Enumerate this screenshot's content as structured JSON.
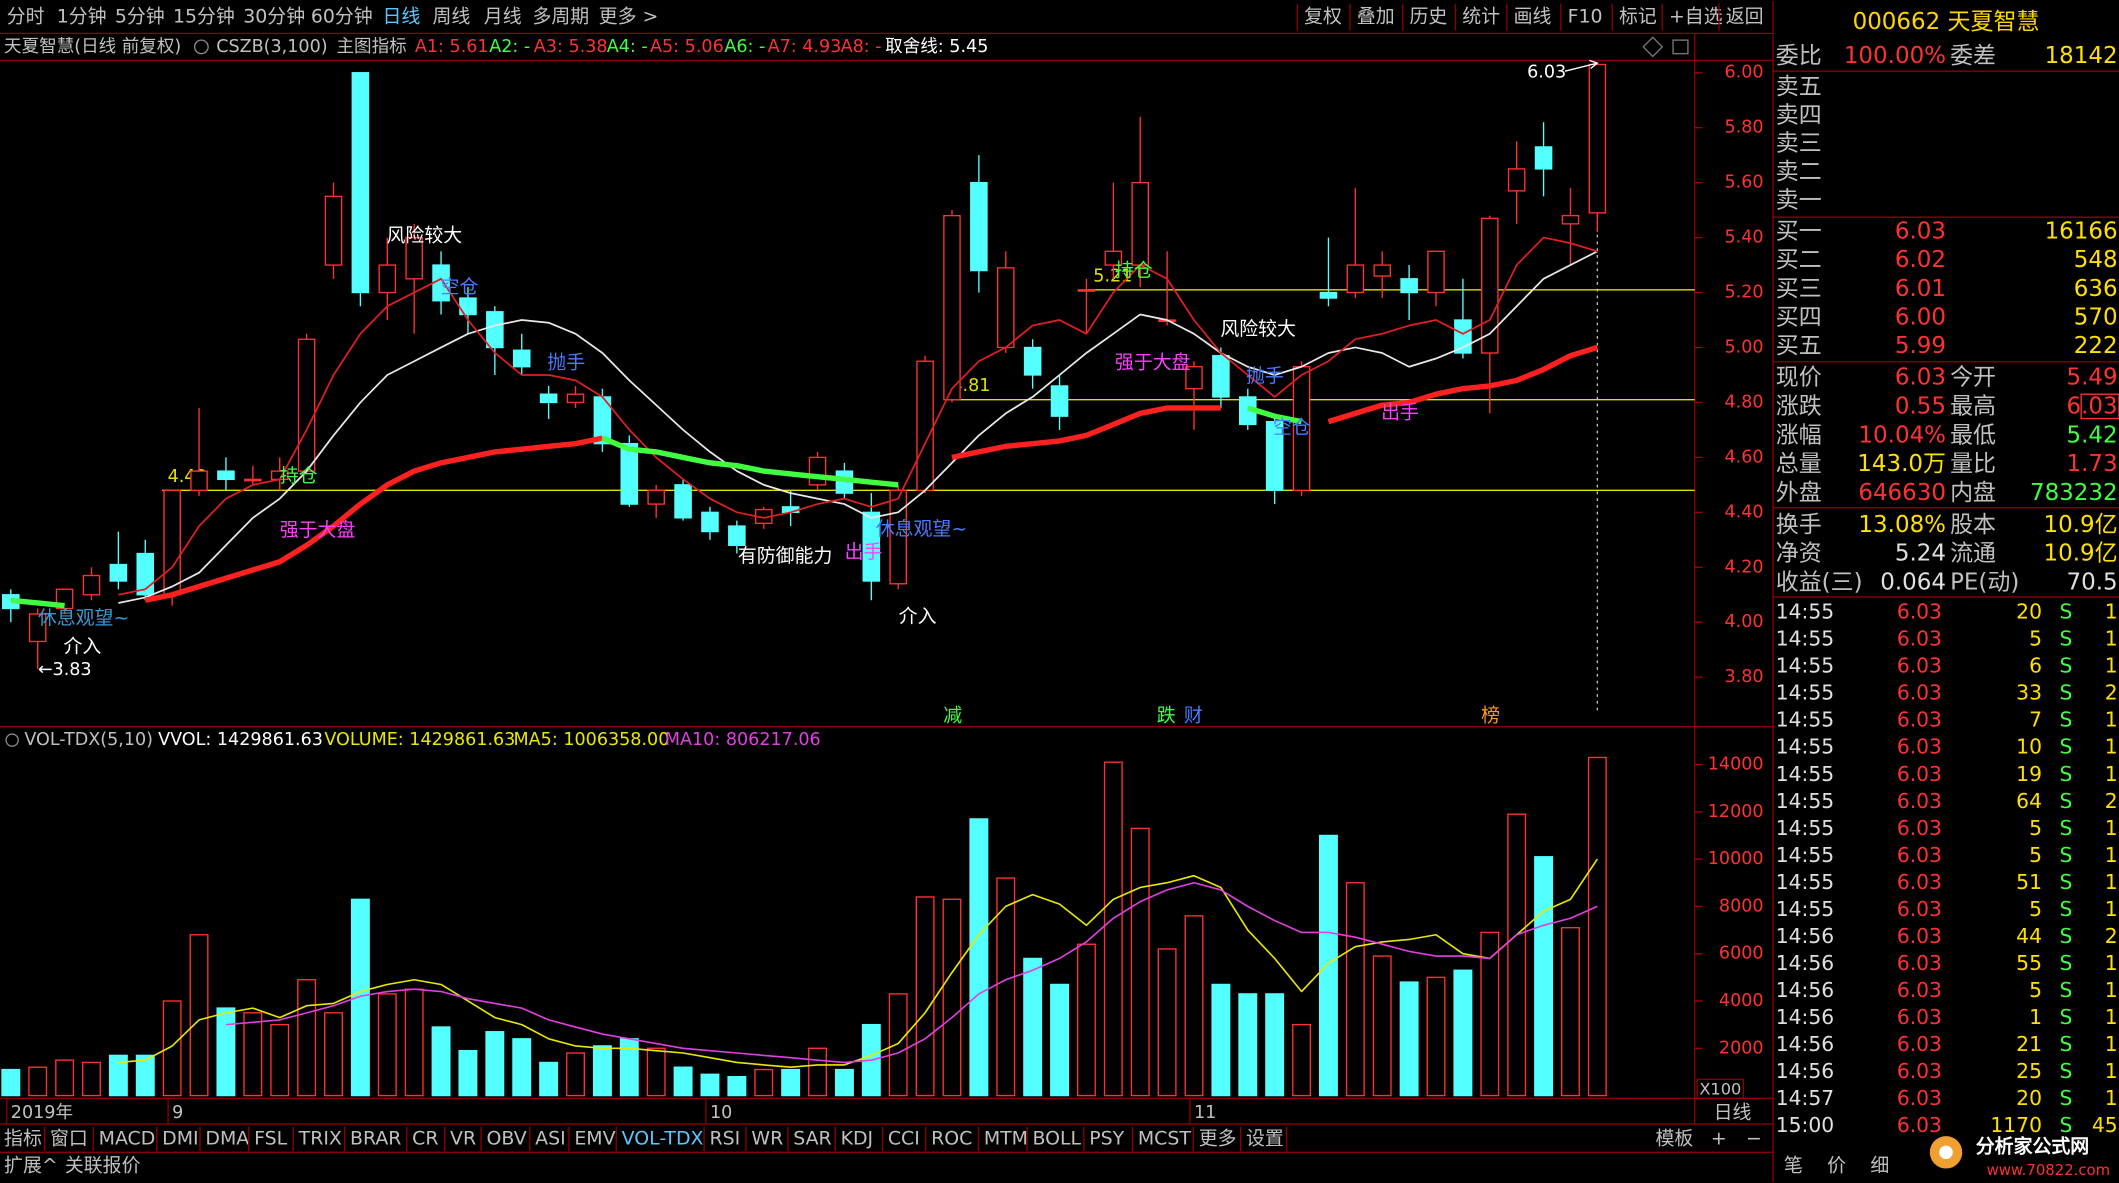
{
  "toolbar": {
    "left": [
      "分时",
      "1分钟",
      "5分钟",
      "15分钟",
      "30分钟",
      "60分钟",
      "日线",
      "周线",
      "月线",
      "多周期",
      "更多 >"
    ],
    "right": [
      "复权",
      "叠加",
      "历史",
      "统计",
      "画线",
      "F10",
      "标记",
      "+自选",
      "返回"
    ]
  },
  "info": [
    "天夏智慧(日线 前复权)",
    "CSZB(3,100)",
    "主图指标",
    "A1: 5.61",
    "A2: -",
    "A3: 5.38",
    "A4: -",
    "A5: 5.06",
    "A6: -",
    "A7: 4.93",
    "A8: -",
    "取舍线: 5.45"
  ],
  "chart_data": [
    {
      "type": "candlestick",
      "title": "天夏智慧(日线 前复权)",
      "categories": [
        "2019年",
        null,
        null,
        null,
        null,
        null,
        "9",
        null,
        null,
        null,
        null,
        null,
        null,
        null,
        null,
        null,
        null,
        null,
        null,
        null,
        null,
        null,
        null,
        null,
        null,
        null,
        "10",
        null,
        null,
        null,
        null,
        null,
        null,
        null,
        null,
        null,
        null,
        null,
        null,
        null,
        null,
        null,
        null,
        null,
        "11",
        null,
        null,
        null,
        null,
        null,
        null,
        null,
        null,
        null,
        null,
        null,
        null,
        null,
        null,
        null
      ],
      "open": [
        4.1,
        3.93,
        4.05,
        4.1,
        4.21,
        4.25,
        4.1,
        4.48,
        4.55,
        4.52,
        4.52,
        4.55,
        5.3,
        6.0,
        5.2,
        5.25,
        5.3,
        5.18,
        5.13,
        4.99,
        4.83,
        4.8,
        4.82,
        4.65,
        4.43,
        4.5,
        4.4,
        4.35,
        4.36,
        4.42,
        4.5,
        4.55,
        4.4,
        4.14,
        4.48,
        4.81,
        5.6,
        5.0,
        5.0,
        4.86,
        5.21,
        5.3,
        5.3,
        5.1,
        4.85,
        4.97,
        4.82,
        4.73,
        4.48,
        5.2,
        5.2,
        5.26,
        5.25,
        5.2,
        5.1,
        4.98,
        5.57,
        5.73,
        5.45,
        5.49
      ],
      "high": [
        4.12,
        4.05,
        4.12,
        4.2,
        4.33,
        4.3,
        4.48,
        4.78,
        4.6,
        4.57,
        4.6,
        5.05,
        5.6,
        6.0,
        5.4,
        5.45,
        5.35,
        5.22,
        5.15,
        5.05,
        4.86,
        4.86,
        4.85,
        4.68,
        4.5,
        4.52,
        4.42,
        4.37,
        4.42,
        4.48,
        4.62,
        4.58,
        4.47,
        4.5,
        4.97,
        5.5,
        5.7,
        5.35,
        5.03,
        4.9,
        5.25,
        5.6,
        5.84,
        5.35,
        4.95,
        5.0,
        4.85,
        4.76,
        4.95,
        5.4,
        5.58,
        5.35,
        5.3,
        5.35,
        5.25,
        5.48,
        5.75,
        5.82,
        5.58,
        6.03
      ],
      "low": [
        4.0,
        3.83,
        4.03,
        4.08,
        4.12,
        4.08,
        4.06,
        4.46,
        4.48,
        4.5,
        4.48,
        4.54,
        5.25,
        5.15,
        5.1,
        5.05,
        5.12,
        5.05,
        4.9,
        4.9,
        4.74,
        4.78,
        4.62,
        4.42,
        4.38,
        4.37,
        4.3,
        4.25,
        4.34,
        4.35,
        4.48,
        4.45,
        4.08,
        4.12,
        4.47,
        4.8,
        5.2,
        4.98,
        4.85,
        4.7,
        5.05,
        5.25,
        5.22,
        5.08,
        4.7,
        4.78,
        4.7,
        4.43,
        4.46,
        5.15,
        5.18,
        5.18,
        5.1,
        5.15,
        4.96,
        4.76,
        5.45,
        5.55,
        5.3,
        5.42
      ],
      "close": [
        4.05,
        4.03,
        4.12,
        4.17,
        4.15,
        4.1,
        4.48,
        4.55,
        4.52,
        4.52,
        4.55,
        5.03,
        5.55,
        5.2,
        5.3,
        5.4,
        5.17,
        5.12,
        5.0,
        4.93,
        4.8,
        4.83,
        4.65,
        4.43,
        4.48,
        4.38,
        4.33,
        4.28,
        4.41,
        4.4,
        4.6,
        4.47,
        4.15,
        4.48,
        4.95,
        5.48,
        5.28,
        5.29,
        4.9,
        4.75,
        5.21,
        5.35,
        5.6,
        5.1,
        4.93,
        4.82,
        4.72,
        4.48,
        4.93,
        5.18,
        5.3,
        5.3,
        5.2,
        5.35,
        4.98,
        5.47,
        5.65,
        5.65,
        5.48,
        6.03
      ],
      "up_color": "#ff3232",
      "down_color": "#54ffff",
      "ylim": [
        3.62,
        6.04
      ],
      "yticks": [
        {
          "value": 6.0,
          "label": "6.00"
        },
        {
          "value": 5.8,
          "label": "5.80"
        },
        {
          "value": 5.6,
          "label": "5.60"
        },
        {
          "value": 5.4,
          "label": "5.40"
        },
        {
          "value": 5.2,
          "label": "5.20"
        },
        {
          "value": 5.0,
          "label": "5.00"
        },
        {
          "value": 4.8,
          "label": "4.80"
        },
        {
          "value": 4.6,
          "label": "4.60"
        },
        {
          "value": 4.4,
          "label": "4.40"
        },
        {
          "value": 4.2,
          "label": "4.20"
        },
        {
          "value": 4.0,
          "label": "4.00"
        },
        {
          "value": 3.8,
          "label": "3.80"
        }
      ],
      "lines": [
        {
          "color": "#e8e8e8",
          "width": 1.3,
          "values": [
            null,
            null,
            null,
            null,
            4.07,
            4.09,
            4.13,
            4.18,
            4.28,
            4.38,
            4.45,
            4.55,
            4.68,
            4.8,
            4.9,
            4.95,
            5.0,
            5.05,
            5.08,
            5.1,
            5.09,
            5.05,
            4.98,
            4.88,
            4.79,
            4.7,
            4.62,
            4.55,
            4.5,
            4.47,
            4.45,
            4.43,
            4.38,
            4.4,
            4.48,
            4.58,
            4.68,
            4.76,
            4.82,
            4.9,
            4.98,
            5.05,
            5.12,
            5.1,
            5.05,
            4.98,
            4.93,
            4.9,
            4.93,
            4.98,
            5.0,
            4.98,
            4.93,
            4.96,
            5.0,
            5.05,
            5.15,
            5.25,
            5.3,
            5.35
          ]
        },
        {
          "color": "#e02020",
          "width": 1.3,
          "values": [
            null,
            null,
            null,
            null,
            4.1,
            4.12,
            4.2,
            4.35,
            4.45,
            4.5,
            4.52,
            4.7,
            4.9,
            5.05,
            5.15,
            5.2,
            5.25,
            5.1,
            4.98,
            4.9,
            4.9,
            4.88,
            4.82,
            4.7,
            4.6,
            4.52,
            4.45,
            4.4,
            4.38,
            4.4,
            4.43,
            4.45,
            4.42,
            4.45,
            4.65,
            4.85,
            4.95,
            5.0,
            5.08,
            5.1,
            5.05,
            5.2,
            5.3,
            5.25,
            5.1,
            4.98,
            4.9,
            4.82,
            4.9,
            4.95,
            5.03,
            5.05,
            5.08,
            5.1,
            5.05,
            5.1,
            5.3,
            5.4,
            5.38,
            5.35
          ]
        },
        {
          "color": "#ff2020",
          "width": 4,
          "values": [
            null,
            null,
            null,
            null,
            null,
            4.08,
            4.1,
            4.13,
            4.16,
            4.19,
            4.22,
            4.28,
            4.35,
            4.43,
            4.5,
            4.55,
            4.58,
            4.6,
            4.62,
            4.63,
            4.64,
            4.65,
            4.67,
            null,
            null,
            null,
            null,
            null,
            null,
            null,
            null,
            null,
            null,
            null,
            null,
            4.6,
            4.62,
            4.64,
            4.65,
            4.66,
            4.68,
            4.72,
            4.76,
            4.78,
            4.78,
            4.78,
            null,
            null,
            null,
            4.73,
            4.76,
            4.79,
            4.8,
            4.83,
            4.85,
            4.86,
            4.88,
            4.92,
            4.97,
            5.0
          ]
        },
        {
          "color": "#40ff40",
          "width": 4,
          "values": [
            4.08,
            4.07,
            4.06,
            null,
            null,
            null,
            null,
            null,
            null,
            null,
            null,
            null,
            null,
            null,
            null,
            null,
            null,
            null,
            null,
            null,
            null,
            null,
            4.67,
            4.63,
            4.62,
            4.6,
            4.58,
            4.57,
            4.55,
            4.54,
            4.53,
            4.52,
            4.51,
            4.5,
            null,
            null,
            null,
            null,
            null,
            null,
            null,
            null,
            null,
            null,
            null,
            null,
            4.78,
            4.75,
            4.73,
            null,
            null,
            null,
            null,
            null,
            null,
            null,
            null,
            null,
            null,
            null
          ]
        }
      ],
      "levels": [
        4.48,
        4.81,
        5.21
      ],
      "level_color": "#e0e000",
      "annotations": [
        {
          "text": "风险较大",
          "color": "#ffffff"
        },
        {
          "text": "空仓",
          "color": "#4a7cff"
        },
        {
          "text": "抛手",
          "color": "#4a7cff"
        },
        {
          "text": "持仓",
          "color": "#40ff40"
        },
        {
          "text": "强于大盘",
          "color": "#ff40ff"
        },
        {
          "text": "休息观望~",
          "color": "#3a9ad0"
        },
        {
          "text": "介入",
          "color": "#ffffff"
        },
        {
          "text": "←3.83",
          "color": "#ffffff"
        },
        {
          "text": "有防御能力",
          "color": "#ffffff"
        },
        {
          "text": "出手",
          "color": "#ff40ff"
        },
        {
          "text": "休息观望~",
          "color": "#4a7cff"
        },
        {
          "text": "介入",
          "color": "#ffffff"
        },
        {
          "text": "持仓",
          "color": "#40ff40"
        },
        {
          "text": "强于大盘",
          "color": "#ff40ff"
        },
        {
          "text": "风险较大",
          "color": "#ffffff"
        },
        {
          "text": "抛手",
          "color": "#4a7cff"
        },
        {
          "text": "空仓",
          "color": "#4a7cff"
        },
        {
          "text": "出手",
          "color": "#ff40ff"
        },
        {
          "text": "6.03",
          "color": "#ffffff"
        },
        {
          "text": "减",
          "color": "#40ff40"
        },
        {
          "text": "跌",
          "color": "#40ff40"
        },
        {
          "text": "财",
          "color": "#4a7cff"
        },
        {
          "text": "榜",
          "color": "#ff9a20"
        }
      ],
      "period": "日线"
    },
    {
      "type": "bar",
      "legend": [
        "VOL-TDX(5,10)",
        "VVOL: 1429861.63",
        "VOLUME: 1429861.63",
        "MA5: 1006358.00",
        "MA10: 806217.06"
      ],
      "values": [
        1100,
        1200,
        1500,
        1400,
        1700,
        1700,
        4000,
        6800,
        3700,
        3500,
        3000,
        4900,
        3500,
        8300,
        4300,
        4500,
        2900,
        1900,
        2700,
        2400,
        1400,
        1800,
        2100,
        2400,
        2000,
        1200,
        900,
        800,
        1100,
        1100,
        2000,
        1100,
        3000,
        4300,
        8400,
        8300,
        11700,
        9200,
        5800,
        4700,
        6400,
        14100,
        11300,
        6200,
        7600,
        4700,
        4300,
        4300,
        3000,
        11000,
        9000,
        5900,
        4800,
        5000,
        5300,
        6900,
        11900,
        10100,
        7100,
        14300
      ],
      "ylim": [
        0,
        14460
      ],
      "yticks": [
        2000,
        4000,
        6000,
        8000,
        10000,
        12000,
        14000
      ],
      "unit": "X100",
      "lines": [
        {
          "color": "#e8e800",
          "values": [
            null,
            null,
            null,
            null,
            1400,
            1500,
            2100,
            3200,
            3500,
            3700,
            3300,
            3800,
            3900,
            4400,
            4700,
            4900,
            4700,
            4000,
            3300,
            3000,
            2400,
            2100,
            2000,
            2000,
            1900,
            1800,
            1600,
            1400,
            1300,
            1200,
            1300,
            1300,
            1700,
            2200,
            3500,
            5200,
            6800,
            8000,
            8500,
            8100,
            7200,
            8300,
            8800,
            9000,
            9300,
            8800,
            7000,
            5800,
            4400,
            5600,
            6300,
            6500,
            6600,
            6800,
            6000,
            5800,
            6800,
            7800,
            8300,
            10000
          ]
        },
        {
          "color": "#e040e0",
          "values": [
            null,
            null,
            null,
            null,
            null,
            null,
            null,
            null,
            3000,
            3100,
            3200,
            3500,
            3800,
            4200,
            4400,
            4500,
            4400,
            4100,
            3900,
            3700,
            3200,
            2900,
            2600,
            2400,
            2200,
            2000,
            1900,
            1800,
            1700,
            1600,
            1500,
            1400,
            1500,
            1800,
            2400,
            3300,
            4300,
            4900,
            5300,
            5800,
            6500,
            7500,
            8200,
            8700,
            9000,
            8700,
            8000,
            7400,
            6900,
            6900,
            6700,
            6400,
            6100,
            5900,
            5900,
            5800,
            6800,
            7200,
            7500,
            8000
          ]
        }
      ]
    }
  ],
  "tabs": {
    "main": [
      "指标",
      "窗口",
      "MACD",
      "DMI",
      "DMA",
      "FSL",
      "TRIX",
      "BRAR",
      "CR",
      "VR",
      "OBV",
      "ASI",
      "EMV",
      "VOL-TDX",
      "RSI",
      "WR",
      "SAR",
      "KDJ",
      "CCI",
      "ROC",
      "MTM",
      "BOLL",
      "PSY",
      "MCST",
      "更多",
      "设置"
    ],
    "right": [
      "模板",
      "+",
      "−"
    ],
    "bottom": [
      "扩展^",
      "关联报价"
    ],
    "panel": [
      "笔",
      "价",
      "细"
    ]
  },
  "quote": {
    "title": "000662 天夏智慧",
    "ratio": [
      "委比",
      "100.00%",
      "委差",
      "18142"
    ],
    "sells": [
      "卖五",
      "卖四",
      "卖三",
      "卖二",
      "卖一"
    ],
    "buys": [
      [
        "买一",
        "6.03",
        "16166"
      ],
      [
        "买二",
        "6.02",
        "548"
      ],
      [
        "买三",
        "6.01",
        "636"
      ],
      [
        "买四",
        "6.00",
        "570"
      ],
      [
        "买五",
        "5.99",
        "222"
      ]
    ],
    "stats": [
      [
        "现价",
        "6.03",
        "今开",
        "5.49"
      ],
      [
        "涨跌",
        "0.55",
        "最高",
        "6.03"
      ],
      [
        "涨幅",
        "10.04%",
        "最低",
        "5.42"
      ],
      [
        "总量",
        "143.0万",
        "量比",
        "1.73"
      ],
      [
        "外盘",
        "646630",
        "内盘",
        "783232"
      ],
      [
        "换手",
        "13.08%",
        "股本",
        "10.9亿"
      ],
      [
        "净资",
        "5.24",
        "流通",
        "10.9亿"
      ],
      [
        "收益(三)",
        "0.064",
        "PE(动)",
        "70.5"
      ]
    ],
    "ticks": [
      [
        "14:55",
        "6.03",
        "20",
        "S",
        "1"
      ],
      [
        "14:55",
        "6.03",
        "5",
        "S",
        "1"
      ],
      [
        "14:55",
        "6.03",
        "6",
        "S",
        "1"
      ],
      [
        "14:55",
        "6.03",
        "33",
        "S",
        "2"
      ],
      [
        "14:55",
        "6.03",
        "7",
        "S",
        "1"
      ],
      [
        "14:55",
        "6.03",
        "10",
        "S",
        "1"
      ],
      [
        "14:55",
        "6.03",
        "19",
        "S",
        "1"
      ],
      [
        "14:55",
        "6.03",
        "64",
        "S",
        "2"
      ],
      [
        "14:55",
        "6.03",
        "5",
        "S",
        "1"
      ],
      [
        "14:55",
        "6.03",
        "5",
        "S",
        "1"
      ],
      [
        "14:55",
        "6.03",
        "51",
        "S",
        "1"
      ],
      [
        "14:55",
        "6.03",
        "5",
        "S",
        "1"
      ],
      [
        "14:56",
        "6.03",
        "44",
        "S",
        "2"
      ],
      [
        "14:56",
        "6.03",
        "55",
        "S",
        "1"
      ],
      [
        "14:56",
        "6.03",
        "5",
        "S",
        "1"
      ],
      [
        "14:56",
        "6.03",
        "1",
        "S",
        "1"
      ],
      [
        "14:56",
        "6.03",
        "21",
        "S",
        "1"
      ],
      [
        "14:56",
        "6.03",
        "25",
        "S",
        "1"
      ],
      [
        "14:57",
        "6.03",
        "20",
        "S",
        "1"
      ],
      [
        "15:00",
        "6.03",
        "1170",
        "S",
        "45"
      ]
    ]
  },
  "logo": [
    "分析家公式网",
    "www.70822.com"
  ]
}
